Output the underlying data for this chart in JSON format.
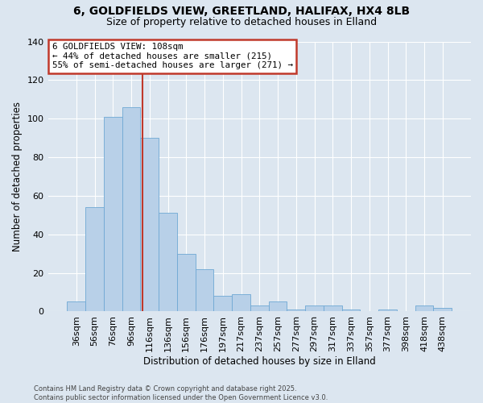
{
  "title1": "6, GOLDFIELDS VIEW, GREETLAND, HALIFAX, HX4 8LB",
  "title2": "Size of property relative to detached houses in Elland",
  "categories": [
    "36sqm",
    "56sqm",
    "76sqm",
    "96sqm",
    "116sqm",
    "136sqm",
    "156sqm",
    "176sqm",
    "197sqm",
    "217sqm",
    "237sqm",
    "257sqm",
    "277sqm",
    "297sqm",
    "317sqm",
    "337sqm",
    "357sqm",
    "377sqm",
    "398sqm",
    "418sqm",
    "438sqm"
  ],
  "values": [
    5,
    54,
    101,
    106,
    90,
    51,
    30,
    22,
    8,
    9,
    3,
    5,
    1,
    3,
    3,
    1,
    0,
    1,
    0,
    3,
    2
  ],
  "bar_color": "#b8d0e8",
  "bar_edge_color": "#6fa8d4",
  "annotation_text_line1": "6 GOLDFIELDS VIEW: 108sqm",
  "annotation_text_line2": "← 44% of detached houses are smaller (215)",
  "annotation_text_line3": "55% of semi-detached houses are larger (271) →",
  "vline_color": "#c0392b",
  "box_edge_color": "#c0392b",
  "ylabel": "Number of detached properties",
  "xlabel": "Distribution of detached houses by size in Elland",
  "ylim": [
    0,
    140
  ],
  "yticks": [
    0,
    20,
    40,
    60,
    80,
    100,
    120,
    140
  ],
  "footer1": "Contains HM Land Registry data © Crown copyright and database right 2025.",
  "footer2": "Contains public sector information licensed under the Open Government Licence v3.0.",
  "bg_color": "#dce6f0",
  "plot_bg_color": "#dce6f0",
  "grid_color": "#ffffff",
  "title1_fontsize": 10,
  "title2_fontsize": 9
}
